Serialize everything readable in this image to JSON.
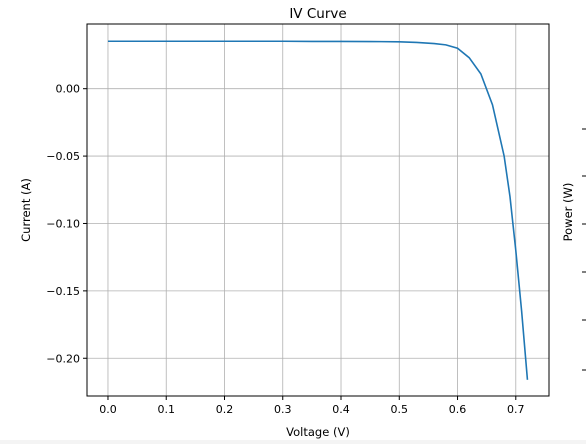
{
  "chart_data": [
    {
      "type": "line",
      "title": "IV Curve",
      "xlabel": "Voltage (V)",
      "ylabel": "Current (A)",
      "xlim": [
        -0.036,
        0.757
      ],
      "ylim": [
        -0.228,
        0.048
      ],
      "grid": true,
      "xticks": [
        "0.0",
        "0.1",
        "0.2",
        "0.3",
        "0.4",
        "0.5",
        "0.6",
        "0.7"
      ],
      "yticks": [
        "0.00",
        "−0.05",
        "−0.10",
        "−0.15",
        "−0.20"
      ],
      "series": [
        {
          "color": "#1f77b4",
          "x": [
            0.0,
            0.05,
            0.1,
            0.15,
            0.2,
            0.25,
            0.3,
            0.35,
            0.4,
            0.45,
            0.5,
            0.53,
            0.56,
            0.58,
            0.6,
            0.62,
            0.64,
            0.66,
            0.68,
            0.69,
            0.7,
            0.71,
            0.72
          ],
          "y": [
            0.0352,
            0.0352,
            0.0352,
            0.0352,
            0.0352,
            0.0352,
            0.0352,
            0.0351,
            0.0351,
            0.035,
            0.0348,
            0.0343,
            0.0335,
            0.0325,
            0.03,
            0.023,
            0.011,
            -0.012,
            -0.05,
            -0.08,
            -0.12,
            -0.165,
            -0.216
          ]
        }
      ]
    },
    {
      "type": "line",
      "ylabel": "Power (W)",
      "note_visible": "partially visible second panel"
    }
  ]
}
